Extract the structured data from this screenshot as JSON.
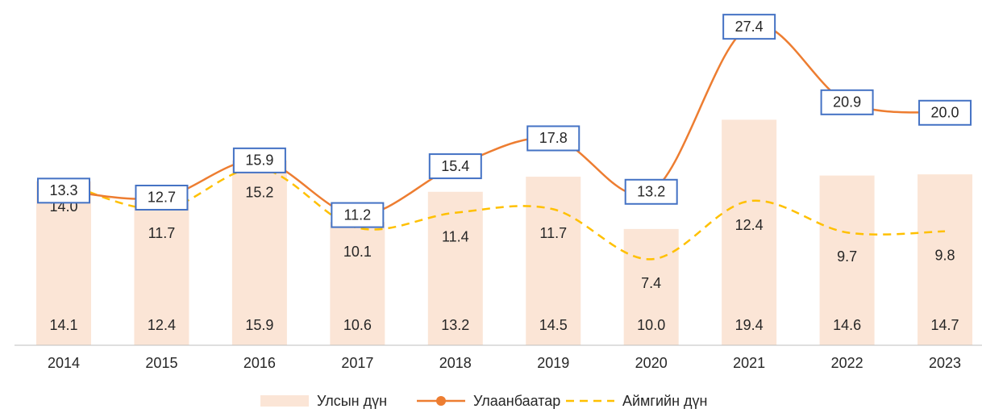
{
  "chart_data": {
    "type": "bar-line",
    "categories": [
      "2014",
      "2015",
      "2016",
      "2017",
      "2018",
      "2019",
      "2020",
      "2021",
      "2022",
      "2023"
    ],
    "ylim": [
      0,
      29.7
    ],
    "legend": "bottom",
    "series": [
      {
        "name": "Улсын дүн",
        "type": "bar",
        "color": "#fbe5d6",
        "values": [
          14.1,
          12.4,
          15.9,
          10.6,
          13.2,
          14.5,
          10.0,
          19.4,
          14.6,
          14.7
        ],
        "value_labels": [
          "14.1",
          "12.4",
          "15.9",
          "10.6",
          "13.2",
          "14.5",
          "10.0",
          "19.4",
          "14.6",
          "14.7"
        ]
      },
      {
        "name": "Улаанбаатар",
        "type": "line",
        "color": "#ed7d31",
        "markers": true,
        "smooth": true,
        "values": [
          13.3,
          12.7,
          15.9,
          11.2,
          15.4,
          17.8,
          13.2,
          27.4,
          20.9,
          20.0
        ],
        "value_labels": [
          "13.3",
          "12.7",
          "15.9",
          "11.2",
          "15.4",
          "17.8",
          "13.2",
          "27.4",
          "20.9",
          "20.0"
        ]
      },
      {
        "name": "Аймгийн дүн",
        "type": "line",
        "color": "#ffc000",
        "dashed": true,
        "smooth": true,
        "values": [
          14.0,
          11.7,
          15.2,
          10.1,
          11.4,
          11.7,
          7.4,
          12.4,
          9.7,
          9.8
        ],
        "value_labels": [
          "14.0",
          "11.7",
          "15.2",
          "10.1",
          "11.4",
          "11.7",
          "7.4",
          "12.4",
          "9.7",
          "9.8"
        ]
      }
    ]
  }
}
